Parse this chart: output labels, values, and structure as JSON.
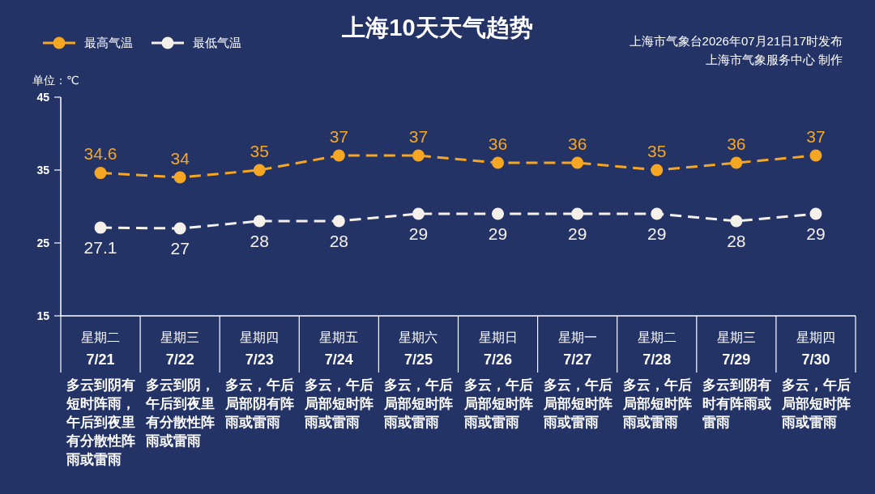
{
  "chart_data": {
    "type": "line",
    "title": "上海10天天气趋势",
    "ylabel": "单位：℃",
    "annotations": [
      "上海市气象台2026年07月21日17时发布",
      "上海市气象服务中心 制作"
    ],
    "categories": [
      "星期二\n7/21\n多云到阴有短时阵雨，午后到夜里有分散性阵雨或雷雨",
      "星期三\n7/22\n多云到阴，午后到夜里有分散性阵雨或雷雨",
      "星期四\n7/23\n多云，午后局部阴有阵雨或雷雨",
      "星期五\n7/24\n多云，午后局部短时阵雨或雷雨",
      "星期六\n7/25\n多云，午后局部短时阵雨或雷雨",
      "星期日\n7/26\n多云，午后局部短时阵雨或雷雨",
      "星期一\n7/27\n多云，午后局部短时阵雨或雷雨",
      "星期二\n7/28\n多云，午后局部短时阵雨或雷雨",
      "星期三\n7/29\n多云到阴有时有阵雨或雷雨",
      "星期四\n7/30\n多云，午后局部短时阵雨或雷雨"
    ],
    "series": [
      {
        "name": "最高气温",
        "color": "#f5a623",
        "values": [
          34.6,
          34,
          35,
          37,
          37,
          36,
          36,
          35,
          36,
          37
        ]
      },
      {
        "name": "最低气温",
        "color": "#f5f1ea",
        "values": [
          27.1,
          27,
          28,
          28,
          29,
          29,
          29,
          29,
          28,
          29
        ]
      }
    ],
    "ylim": [
      15,
      45
    ],
    "yticks": [
      15,
      25,
      35,
      45
    ],
    "legend": "top left",
    "marker": "circle",
    "line_style": "dashed",
    "data_labels": true
  }
}
